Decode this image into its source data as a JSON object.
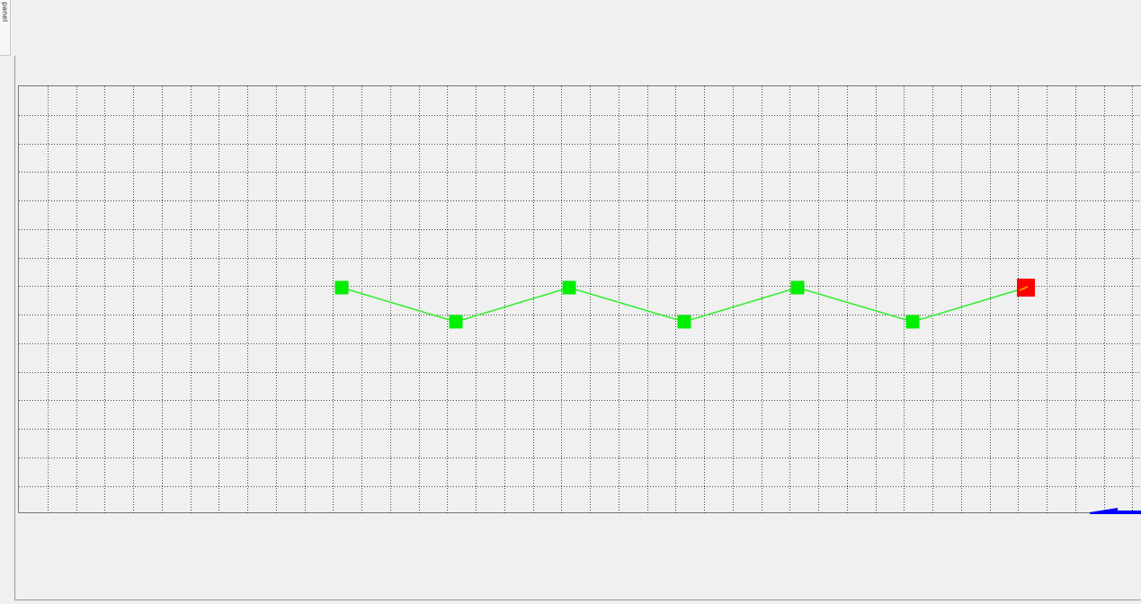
{
  "panel_toggle": {
    "label": "panel"
  },
  "canvas": {
    "grid": "dotted",
    "grid_color": "#444444",
    "background": "#f0f0f0"
  },
  "path": {
    "line_color": "#33ee33",
    "nodes": [
      {
        "role": "waypoint",
        "color": "#00ee00"
      },
      {
        "role": "waypoint",
        "color": "#00ee00"
      },
      {
        "role": "waypoint",
        "color": "#00ee00"
      },
      {
        "role": "waypoint",
        "color": "#00ee00"
      },
      {
        "role": "waypoint",
        "color": "#00ee00"
      },
      {
        "role": "waypoint",
        "color": "#00ee00"
      },
      {
        "role": "current",
        "color": "#ff0000"
      }
    ]
  },
  "indicator": {
    "color": "#0000ff",
    "icon": "blue-arrow-indicator"
  }
}
